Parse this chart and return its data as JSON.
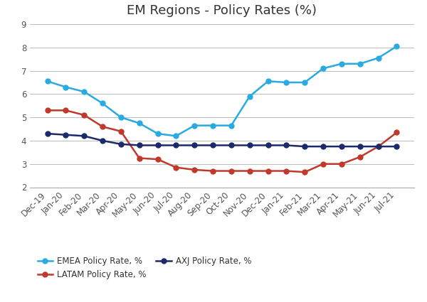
{
  "title": "EM Regions - Policy Rates (%)",
  "x_labels": [
    "Dec-19",
    "Jan-20",
    "Feb-20",
    "Mar-20",
    "Apr-20",
    "May-20",
    "Jun-20",
    "Jul-20",
    "Aug-20",
    "Sep-20",
    "Oct-20",
    "Nov-20",
    "Dec-20",
    "Jan-21",
    "Feb-21",
    "Mar-21",
    "Apr-21",
    "May-21",
    "Jun-21",
    "Jul-21"
  ],
  "emea": [
    6.55,
    6.3,
    6.1,
    5.6,
    5.0,
    4.75,
    4.3,
    4.2,
    4.65,
    4.65,
    4.65,
    5.9,
    6.55,
    6.5,
    6.5,
    7.1,
    7.3,
    7.3,
    7.55,
    8.05
  ],
  "latam": [
    5.3,
    5.3,
    5.1,
    4.6,
    4.4,
    3.25,
    3.2,
    2.85,
    2.75,
    2.7,
    2.7,
    2.7,
    2.7,
    2.7,
    2.65,
    3.0,
    3.0,
    3.3,
    3.75,
    4.35
  ],
  "axj": [
    4.3,
    4.25,
    4.2,
    4.0,
    3.85,
    3.8,
    3.8,
    3.8,
    3.8,
    3.8,
    3.8,
    3.8,
    3.8,
    3.8,
    3.75,
    3.75,
    3.75,
    3.75,
    3.75,
    3.75
  ],
  "emea_color": "#29ABE2",
  "latam_color": "#C0392B",
  "axj_color": "#1B2A6B",
  "ylim": [
    2,
    9
  ],
  "yticks": [
    2,
    3,
    4,
    5,
    6,
    7,
    8,
    9
  ],
  "legend_labels": [
    "EMEA Policy Rate, %",
    "LATAM Policy Rate, %",
    "AXJ Policy Rate, %"
  ],
  "marker": "o",
  "linewidth": 1.8,
  "markersize": 5,
  "background_color": "#FFFFFF",
  "plot_bg_color": "#F5F5F5",
  "grid_color": "#BBBBBB",
  "title_fontsize": 13,
  "tick_fontsize": 8.5
}
